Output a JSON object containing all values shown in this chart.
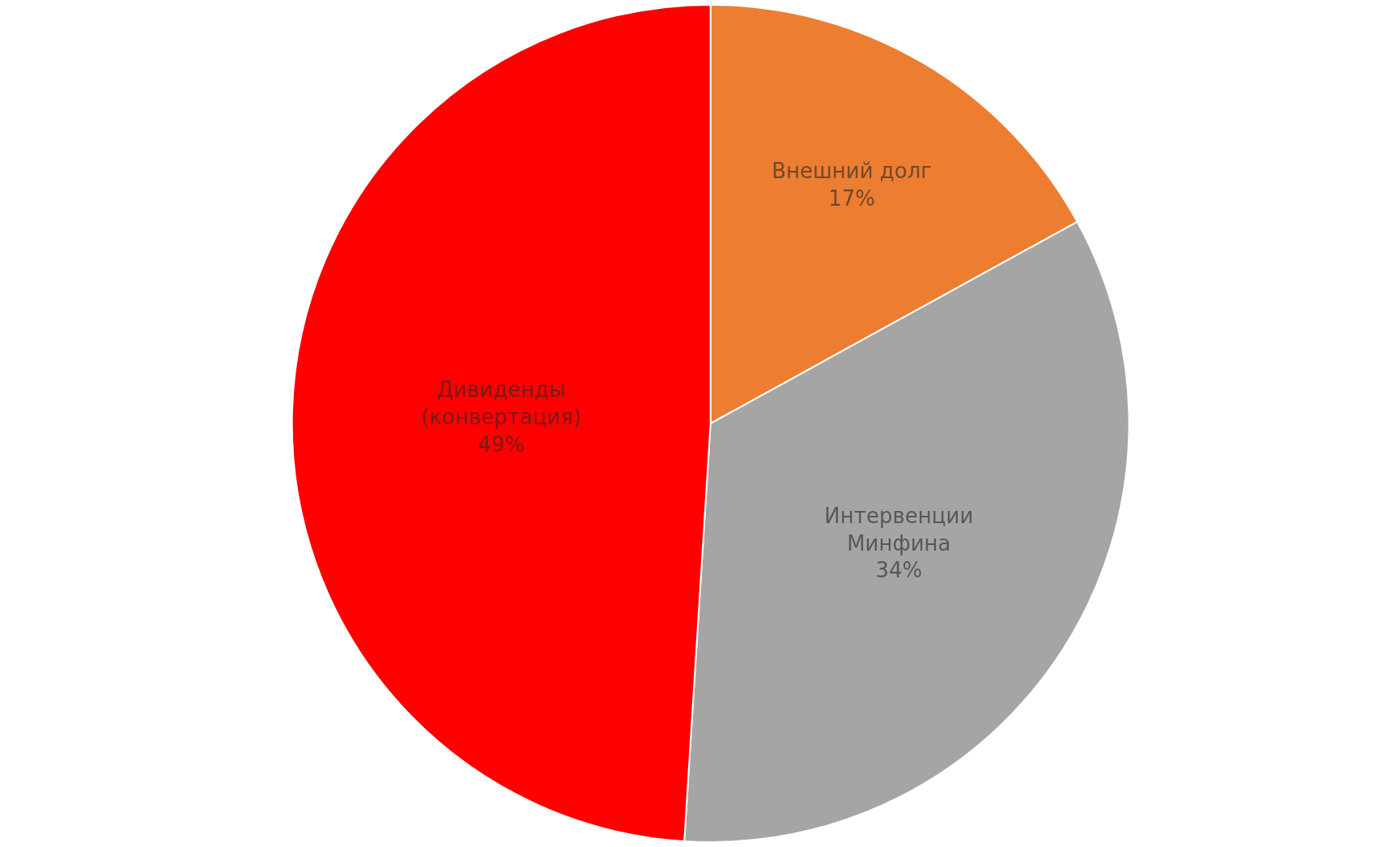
{
  "chart_data": {
    "type": "pie",
    "categories": [
      "Внешний долг",
      "Интервенции Минфина",
      "Дивиденды (конвертация)"
    ],
    "values": [
      17,
      34,
      49
    ],
    "value_labels": [
      "17%",
      "34%",
      "49%"
    ],
    "colors": [
      "#ed7d31",
      "#a5a5a5",
      "#ff0000"
    ]
  }
}
